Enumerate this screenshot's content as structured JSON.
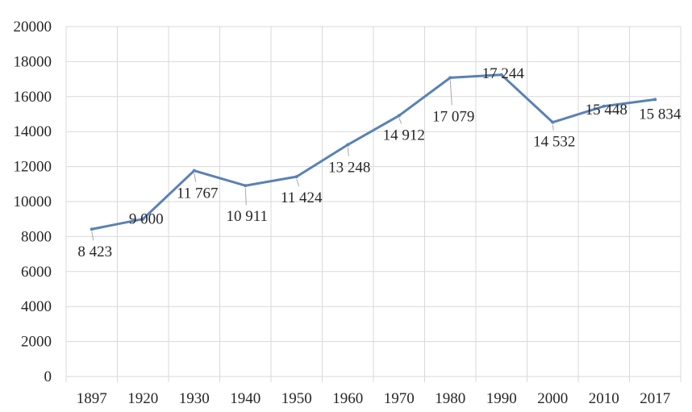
{
  "chart_data": {
    "type": "line",
    "categories": [
      "1897",
      "1920",
      "1930",
      "1940",
      "1950",
      "1960",
      "1970",
      "1980",
      "1990",
      "2000",
      "2010",
      "2017"
    ],
    "series": [
      {
        "values": [
          8423,
          9000,
          11767,
          10911,
          11424,
          13248,
          14912,
          17079,
          17244,
          14532,
          15448,
          15834
        ],
        "data_labels": [
          "8 423",
          "9 000",
          "11 767",
          "10 911",
          "11 424",
          "13 248",
          "14 912",
          "17 079",
          "17 244",
          "14 532",
          "15 448",
          "15 834"
        ]
      }
    ],
    "y_ticks": [
      "0",
      "2000",
      "4000",
      "6000",
      "8000",
      "10000",
      "12000",
      "14000",
      "16000",
      "18000",
      "20000"
    ],
    "ylim": [
      0,
      20000
    ],
    "grid": true,
    "legend": "none",
    "colors": {
      "series": "#5a82b4",
      "grid": "#d9d9d9",
      "text": "#262626",
      "leader": "#a6a6a6"
    }
  }
}
